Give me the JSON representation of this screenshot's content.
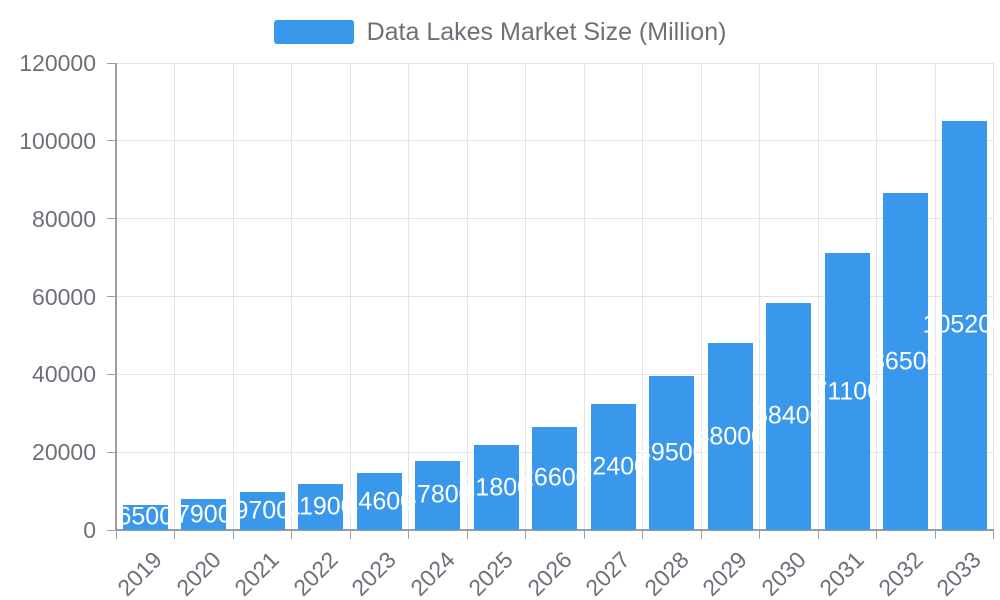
{
  "legend": {
    "label": "Data Lakes Market Size (Million)"
  },
  "chart_data": {
    "type": "bar",
    "title": "Data Lakes Market Size (Million)",
    "categories": [
      "2019",
      "2020",
      "2021",
      "2022",
      "2023",
      "2024",
      "2025",
      "2026",
      "2027",
      "2028",
      "2029",
      "2030",
      "2031",
      "2032",
      "2033"
    ],
    "values": [
      6500,
      7900,
      9700,
      11900,
      14600,
      17800,
      21800,
      26600,
      32400,
      39500,
      48000,
      58400,
      71100,
      86500,
      105200
    ],
    "series": [
      {
        "name": "Data Lakes Market Size (Million)",
        "values": [
          6500,
          7900,
          9700,
          11900,
          14600,
          17800,
          21800,
          26600,
          32400,
          39500,
          48000,
          58400,
          71100,
          86500,
          105200
        ]
      }
    ],
    "xlabel": "",
    "ylabel": "",
    "ylim": [
      0,
      120000
    ],
    "yticks": [
      0,
      20000,
      40000,
      60000,
      80000,
      100000,
      120000
    ],
    "grid": true,
    "legend_position": "top-center",
    "bar_labels_visible": true,
    "colors": {
      "bar": "#3a98ec",
      "bar_label_text": "#ffffff",
      "axis_text": "#6e7079",
      "legend_text": "#6e7079",
      "grid_line": "#e2e4e9",
      "axis_line": "#999ea6"
    }
  }
}
